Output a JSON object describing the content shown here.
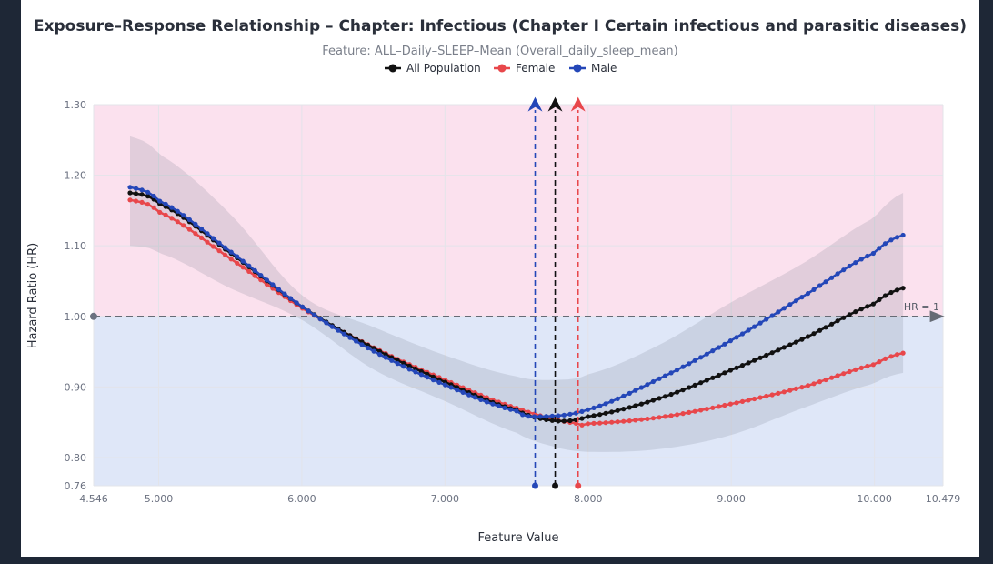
{
  "chart_data": {
    "type": "line",
    "title": "Exposure–Response Relationship – Chapter: Infectious (Chapter I Certain infectious and parasitic diseases)",
    "subtitle": "Feature: ALL–Daily–SLEEP–Mean (Overall_daily_sleep_mean)",
    "xlabel": "Feature Value",
    "ylabel": "Hazard Ratio (HR)",
    "xlim": [
      4.546,
      10.479
    ],
    "ylim": [
      0.76,
      1.3
    ],
    "x_ticks": [
      "4.546",
      "5.000",
      "6.000",
      "7.000",
      "8.000",
      "9.000",
      "10.000",
      "10.479"
    ],
    "y_ticks": [
      "0.76",
      "0.80",
      "0.90",
      "1.00",
      "1.10",
      "1.20",
      "1.30"
    ],
    "reference_line": {
      "value": 1.0,
      "label": "HR = 1"
    },
    "regions": {
      "above": "#fbe1ee",
      "below": "#dfe7f8"
    },
    "grid": true,
    "legend_position": "top-center",
    "series": [
      {
        "name": "All Population",
        "color": "#111111",
        "x": [
          4.8,
          5.0,
          5.5,
          6.0,
          6.5,
          7.0,
          7.5,
          7.77,
          8.0,
          8.5,
          9.0,
          9.5,
          10.0,
          10.2
        ],
        "y": [
          1.175,
          1.16,
          1.09,
          1.014,
          0.955,
          0.907,
          0.867,
          0.852,
          0.858,
          0.884,
          0.924,
          0.968,
          1.018,
          1.04
        ],
        "lower": [
          1.1,
          1.09,
          1.04,
          0.995,
          0.925,
          0.88,
          0.835,
          0.815,
          0.808,
          0.812,
          0.832,
          0.87,
          0.905,
          0.92
        ],
        "upper": [
          1.255,
          1.23,
          1.145,
          1.03,
          0.985,
          0.945,
          0.915,
          0.91,
          0.918,
          0.96,
          1.02,
          1.075,
          1.14,
          1.175
        ],
        "optimum": 7.77
      },
      {
        "name": "Female",
        "color": "#e8474b",
        "x": [
          4.8,
          5.0,
          5.5,
          6.0,
          6.5,
          7.0,
          7.5,
          7.93,
          8.0,
          8.5,
          9.0,
          9.5,
          10.0,
          10.2
        ],
        "y": [
          1.165,
          1.148,
          1.082,
          1.012,
          0.956,
          0.91,
          0.87,
          0.848,
          0.848,
          0.857,
          0.876,
          0.9,
          0.932,
          0.948
        ],
        "optimum": 7.93
      },
      {
        "name": "Male",
        "color": "#2447b8",
        "x": [
          4.8,
          5.0,
          5.5,
          6.0,
          6.5,
          7.0,
          7.5,
          7.63,
          8.0,
          8.5,
          9.0,
          9.5,
          10.0,
          10.2
        ],
        "y": [
          1.183,
          1.164,
          1.092,
          1.014,
          0.951,
          0.903,
          0.866,
          0.858,
          0.868,
          0.912,
          0.966,
          1.028,
          1.09,
          1.115
        ],
        "optimum": 7.63
      }
    ]
  }
}
